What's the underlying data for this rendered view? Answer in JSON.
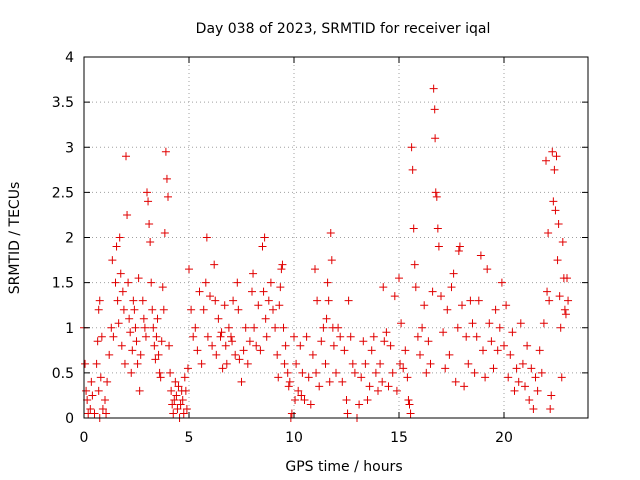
{
  "chart_data": {
    "type": "scatter",
    "title": "Day 038 of 2023, SRMTID for receiver iqal",
    "xlabel": "GPS time / hours",
    "ylabel": "SRMTID / TECUs",
    "xlim": [
      0,
      24
    ],
    "ylim": [
      0,
      4
    ],
    "xticks": [
      0,
      5,
      10,
      15,
      20
    ],
    "xtick_labels": [
      "0",
      "5",
      "10",
      "15",
      "20"
    ],
    "yticks": [
      0,
      0.5,
      1,
      1.5,
      2,
      2.5,
      3,
      3.5,
      4
    ],
    "ytick_labels": [
      "0",
      "0.5",
      "1",
      "1.5",
      "2",
      "2.5",
      "3",
      "3.5",
      "4"
    ],
    "grid": true,
    "marker": "+",
    "color": "#e00000",
    "series": [
      {
        "name": "SRMTID",
        "points": [
          [
            0.0,
            1.0
          ],
          [
            0.05,
            0.6
          ],
          [
            0.1,
            0.3
          ],
          [
            0.15,
            0.2
          ],
          [
            0.2,
            0.05
          ],
          [
            0.3,
            0.1
          ],
          [
            0.35,
            0.4
          ],
          [
            0.4,
            0.25
          ],
          [
            0.5,
            0.05
          ],
          [
            0.6,
            0.6
          ],
          [
            0.65,
            0.85
          ],
          [
            0.7,
            0.3
          ],
          [
            0.75,
            0.0
          ],
          [
            0.8,
            0.45
          ],
          [
            0.85,
            0.9
          ],
          [
            0.7,
            1.2
          ],
          [
            0.75,
            1.3
          ],
          [
            0.9,
            0.1
          ],
          [
            1.0,
            0.2
          ],
          [
            1.05,
            0.05
          ],
          [
            1.1,
            0.4
          ],
          [
            1.2,
            0.7
          ],
          [
            1.3,
            1.0
          ],
          [
            1.35,
            1.75
          ],
          [
            1.4,
            0.9
          ],
          [
            1.5,
            1.5
          ],
          [
            1.55,
            1.9
          ],
          [
            1.6,
            1.3
          ],
          [
            1.65,
            1.05
          ],
          [
            1.7,
            2.0
          ],
          [
            1.75,
            1.6
          ],
          [
            1.8,
            0.8
          ],
          [
            1.85,
            1.4
          ],
          [
            1.9,
            1.2
          ],
          [
            1.95,
            0.6
          ],
          [
            2.0,
            2.9
          ],
          [
            2.05,
            2.25
          ],
          [
            2.1,
            1.5
          ],
          [
            2.15,
            1.1
          ],
          [
            2.2,
            0.95
          ],
          [
            2.25,
            0.5
          ],
          [
            2.3,
            0.75
          ],
          [
            2.35,
            1.3
          ],
          [
            2.4,
            1.2
          ],
          [
            2.45,
            1.0
          ],
          [
            2.5,
            0.85
          ],
          [
            2.55,
            0.6
          ],
          [
            2.6,
            1.55
          ],
          [
            2.65,
            0.3
          ],
          [
            2.7,
            0.7
          ],
          [
            2.8,
            1.3
          ],
          [
            2.85,
            1.1
          ],
          [
            2.9,
            1.0
          ],
          [
            2.95,
            0.9
          ],
          [
            3.0,
            2.5
          ],
          [
            3.05,
            2.4
          ],
          [
            3.1,
            2.15
          ],
          [
            3.15,
            1.95
          ],
          [
            3.2,
            1.5
          ],
          [
            3.25,
            1.2
          ],
          [
            3.3,
            1.0
          ],
          [
            3.35,
            0.8
          ],
          [
            3.4,
            0.65
          ],
          [
            3.45,
            0.9
          ],
          [
            3.5,
            1.1
          ],
          [
            3.55,
            0.7
          ],
          [
            3.6,
            0.5
          ],
          [
            3.65,
            0.45
          ],
          [
            3.7,
            0.85
          ],
          [
            3.75,
            1.45
          ],
          [
            3.8,
            1.2
          ],
          [
            3.85,
            2.05
          ],
          [
            3.9,
            2.95
          ],
          [
            3.95,
            2.65
          ],
          [
            4.0,
            2.45
          ],
          [
            4.05,
            0.8
          ],
          [
            4.1,
            0.5
          ],
          [
            4.15,
            0.3
          ],
          [
            4.2,
            0.15
          ],
          [
            4.25,
            0.05
          ],
          [
            4.3,
            0.2
          ],
          [
            4.35,
            0.4
          ],
          [
            4.4,
            0.25
          ],
          [
            4.45,
            0.1
          ],
          [
            4.5,
            0.35
          ],
          [
            4.55,
            0.0
          ],
          [
            4.6,
            0.15
          ],
          [
            4.65,
            0.3
          ],
          [
            4.7,
            0.2
          ],
          [
            4.75,
            0.05
          ],
          [
            4.8,
            0.45
          ],
          [
            4.85,
            0.3
          ],
          [
            4.9,
            0.1
          ],
          [
            4.95,
            0.55
          ],
          [
            5.0,
            1.65
          ],
          [
            5.1,
            1.2
          ],
          [
            5.2,
            0.9
          ],
          [
            5.3,
            1.0
          ],
          [
            5.4,
            0.75
          ],
          [
            5.5,
            1.4
          ],
          [
            5.6,
            0.6
          ],
          [
            5.7,
            1.2
          ],
          [
            5.8,
            1.5
          ],
          [
            5.9,
            0.9
          ],
          [
            5.85,
            2.0
          ],
          [
            6.0,
            1.35
          ],
          [
            6.1,
            0.8
          ],
          [
            6.2,
            1.7
          ],
          [
            6.25,
            1.3
          ],
          [
            6.3,
            0.7
          ],
          [
            6.4,
            1.1
          ],
          [
            6.5,
            0.9
          ],
          [
            6.55,
            0.95
          ],
          [
            6.6,
            0.55
          ],
          [
            6.7,
            1.25
          ],
          [
            6.75,
            0.8
          ],
          [
            6.8,
            0.6
          ],
          [
            6.9,
            1.0
          ],
          [
            7.0,
            0.9
          ],
          [
            7.05,
            0.85
          ],
          [
            7.1,
            1.3
          ],
          [
            7.2,
            0.7
          ],
          [
            7.3,
            1.5
          ],
          [
            7.35,
            1.2
          ],
          [
            7.4,
            0.65
          ],
          [
            7.5,
            0.4
          ],
          [
            7.6,
            0.75
          ],
          [
            7.7,
            1.0
          ],
          [
            7.8,
            0.6
          ],
          [
            7.9,
            0.85
          ],
          [
            8.0,
            1.4
          ],
          [
            8.05,
            1.6
          ],
          [
            8.1,
            1.0
          ],
          [
            8.2,
            0.8
          ],
          [
            8.3,
            1.25
          ],
          [
            8.4,
            0.75
          ],
          [
            8.5,
            1.9
          ],
          [
            8.55,
            1.4
          ],
          [
            8.6,
            2.0
          ],
          [
            8.65,
            1.1
          ],
          [
            8.7,
            0.9
          ],
          [
            8.8,
            1.3
          ],
          [
            8.9,
            1.5
          ],
          [
            9.0,
            1.2
          ],
          [
            9.1,
            1.0
          ],
          [
            9.2,
            0.7
          ],
          [
            9.25,
            0.45
          ],
          [
            9.3,
            1.25
          ],
          [
            9.35,
            1.45
          ],
          [
            9.4,
            1.65
          ],
          [
            9.45,
            1.7
          ],
          [
            9.5,
            1.0
          ],
          [
            9.55,
            0.6
          ],
          [
            9.6,
            0.8
          ],
          [
            9.7,
            0.5
          ],
          [
            9.75,
            0.35
          ],
          [
            9.8,
            0.4
          ],
          [
            9.85,
            0.0
          ],
          [
            9.9,
            0.05
          ],
          [
            10.0,
            0.9
          ],
          [
            10.05,
            0.2
          ],
          [
            10.1,
            0.6
          ],
          [
            10.2,
            0.3
          ],
          [
            10.3,
            0.8
          ],
          [
            10.35,
            0.25
          ],
          [
            10.4,
            0.5
          ],
          [
            10.5,
            0.2
          ],
          [
            10.6,
            0.9
          ],
          [
            10.7,
            0.45
          ],
          [
            10.8,
            0.15
          ],
          [
            10.9,
            0.7
          ],
          [
            11.0,
            1.65
          ],
          [
            11.05,
            0.5
          ],
          [
            11.1,
            1.3
          ],
          [
            11.2,
            0.35
          ],
          [
            11.3,
            0.85
          ],
          [
            11.4,
            1.0
          ],
          [
            11.5,
            0.6
          ],
          [
            11.55,
            1.1
          ],
          [
            11.6,
            1.5
          ],
          [
            11.65,
            1.3
          ],
          [
            11.7,
            0.4
          ],
          [
            11.75,
            2.05
          ],
          [
            11.8,
            1.75
          ],
          [
            11.85,
            1.0
          ],
          [
            11.9,
            0.8
          ],
          [
            12.0,
            0.5
          ],
          [
            12.1,
            1.0
          ],
          [
            12.2,
            0.9
          ],
          [
            12.3,
            0.4
          ],
          [
            12.4,
            0.75
          ],
          [
            12.5,
            0.2
          ],
          [
            12.55,
            0.05
          ],
          [
            12.6,
            1.3
          ],
          [
            12.7,
            0.9
          ],
          [
            12.8,
            0.6
          ],
          [
            12.9,
            0.5
          ],
          [
            13.0,
            0.0
          ],
          [
            13.1,
            0.15
          ],
          [
            13.2,
            0.45
          ],
          [
            13.3,
            0.85
          ],
          [
            13.4,
            0.6
          ],
          [
            13.5,
            0.2
          ],
          [
            13.6,
            0.35
          ],
          [
            13.7,
            0.75
          ],
          [
            13.8,
            0.9
          ],
          [
            13.9,
            0.5
          ],
          [
            14.0,
            0.3
          ],
          [
            14.1,
            0.6
          ],
          [
            14.2,
            0.4
          ],
          [
            14.25,
            1.45
          ],
          [
            14.3,
            0.85
          ],
          [
            14.4,
            0.95
          ],
          [
            14.5,
            0.35
          ],
          [
            14.6,
            0.8
          ],
          [
            14.7,
            0.5
          ],
          [
            14.8,
            1.35
          ],
          [
            14.9,
            0.3
          ],
          [
            15.0,
            1.55
          ],
          [
            15.05,
            0.6
          ],
          [
            15.1,
            1.05
          ],
          [
            15.2,
            0.55
          ],
          [
            15.3,
            0.75
          ],
          [
            15.4,
            0.45
          ],
          [
            15.45,
            0.2
          ],
          [
            15.5,
            0.15
          ],
          [
            15.55,
            0.05
          ],
          [
            15.6,
            3.0
          ],
          [
            15.65,
            2.75
          ],
          [
            15.7,
            2.1
          ],
          [
            15.75,
            1.7
          ],
          [
            15.8,
            1.45
          ],
          [
            15.9,
            0.9
          ],
          [
            16.0,
            0.7
          ],
          [
            16.1,
            1.0
          ],
          [
            16.2,
            1.25
          ],
          [
            16.3,
            0.5
          ],
          [
            16.4,
            0.85
          ],
          [
            16.5,
            0.6
          ],
          [
            16.6,
            1.4
          ],
          [
            16.65,
            3.65
          ],
          [
            16.7,
            3.42
          ],
          [
            16.72,
            3.1
          ],
          [
            16.75,
            2.5
          ],
          [
            16.8,
            2.45
          ],
          [
            16.85,
            2.1
          ],
          [
            16.9,
            1.9
          ],
          [
            17.0,
            1.35
          ],
          [
            17.1,
            0.95
          ],
          [
            17.2,
            0.55
          ],
          [
            17.3,
            1.2
          ],
          [
            17.4,
            0.7
          ],
          [
            17.5,
            1.45
          ],
          [
            17.6,
            1.6
          ],
          [
            17.7,
            0.4
          ],
          [
            17.8,
            1.0
          ],
          [
            17.85,
            1.85
          ],
          [
            17.9,
            1.9
          ],
          [
            18.0,
            1.25
          ],
          [
            18.1,
            0.35
          ],
          [
            18.2,
            0.9
          ],
          [
            18.3,
            0.6
          ],
          [
            18.4,
            1.3
          ],
          [
            18.5,
            1.05
          ],
          [
            18.6,
            0.5
          ],
          [
            18.7,
            0.9
          ],
          [
            18.8,
            1.3
          ],
          [
            18.9,
            1.8
          ],
          [
            19.0,
            0.75
          ],
          [
            19.1,
            0.45
          ],
          [
            19.2,
            1.65
          ],
          [
            19.3,
            1.05
          ],
          [
            19.4,
            0.85
          ],
          [
            19.5,
            0.55
          ],
          [
            19.6,
            1.2
          ],
          [
            19.7,
            0.75
          ],
          [
            19.8,
            1.0
          ],
          [
            19.9,
            1.5
          ],
          [
            20.0,
            0.8
          ],
          [
            20.1,
            1.25
          ],
          [
            20.2,
            0.45
          ],
          [
            20.3,
            0.7
          ],
          [
            20.4,
            0.95
          ],
          [
            20.5,
            0.3
          ],
          [
            20.6,
            0.55
          ],
          [
            20.7,
            0.4
          ],
          [
            20.8,
            1.05
          ],
          [
            20.9,
            0.6
          ],
          [
            21.0,
            0.35
          ],
          [
            21.1,
            0.8
          ],
          [
            21.2,
            0.2
          ],
          [
            21.3,
            0.55
          ],
          [
            21.4,
            0.1
          ],
          [
            21.5,
            0.45
          ],
          [
            21.6,
            0.3
          ],
          [
            21.7,
            0.75
          ],
          [
            21.8,
            0.5
          ],
          [
            21.9,
            1.05
          ],
          [
            22.0,
            2.85
          ],
          [
            22.05,
            1.4
          ],
          [
            22.1,
            2.05
          ],
          [
            22.15,
            1.3
          ],
          [
            22.2,
            0.1
          ],
          [
            22.25,
            0.25
          ],
          [
            22.3,
            2.95
          ],
          [
            22.35,
            2.4
          ],
          [
            22.4,
            2.75
          ],
          [
            22.45,
            2.3
          ],
          [
            22.5,
            2.9
          ],
          [
            22.55,
            1.75
          ],
          [
            22.6,
            2.15
          ],
          [
            22.65,
            1.35
          ],
          [
            22.7,
            1.0
          ],
          [
            22.75,
            0.45
          ],
          [
            22.8,
            1.95
          ],
          [
            22.85,
            1.55
          ],
          [
            22.9,
            1.2
          ],
          [
            22.95,
            1.15
          ],
          [
            23.0,
            1.55
          ],
          [
            23.05,
            1.3
          ]
        ]
      }
    ]
  }
}
